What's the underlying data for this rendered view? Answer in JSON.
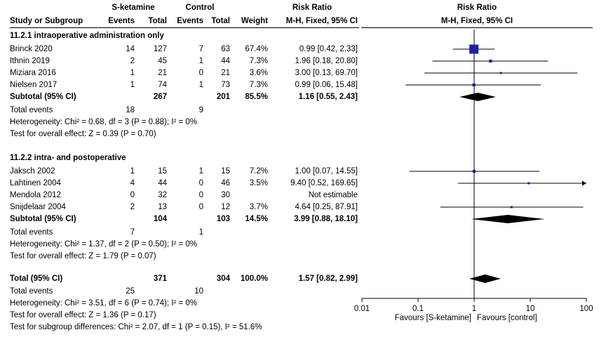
{
  "header": {
    "group1": "S-ketamine",
    "group2": "Control",
    "rr_title": "Risk Ratio",
    "plot_title": "Risk Ratio",
    "col_study": "Study or Subgroup",
    "col_e1": "Events",
    "col_t1": "Total",
    "col_e2": "Events",
    "col_t2": "Total",
    "col_weight": "Weight",
    "col_method": "M-H, Fixed, 95% CI",
    "plot_method": "M-H, Fixed, 95% CI"
  },
  "subgroups": [
    {
      "title": "11.2.1 intraoperative administration only",
      "studies": [
        {
          "name": "Brinck 2020",
          "e1": "14",
          "t1": "127",
          "e2": "7",
          "t2": "63",
          "weight": "67.4%",
          "ci_text": "0.99 [0.42, 2.33]"
        },
        {
          "name": "Ithnin 2019",
          "e1": "2",
          "t1": "45",
          "e2": "1",
          "t2": "44",
          "weight": "7.3%",
          "ci_text": "1.96 [0.18, 20.80]"
        },
        {
          "name": "Miziara 2016",
          "e1": "1",
          "t1": "21",
          "e2": "0",
          "t2": "21",
          "weight": "3.6%",
          "ci_text": "3.00 [0.13, 69.70]"
        },
        {
          "name": "Nielsen 2017",
          "e1": "1",
          "t1": "74",
          "e2": "1",
          "t2": "73",
          "weight": "7.3%",
          "ci_text": "0.99 [0.06, 15.48]"
        }
      ],
      "subtotal": {
        "label": "Subtotal (95% CI)",
        "t1": "267",
        "t2": "201",
        "weight": "85.5%",
        "ci_text": "1.16 [0.55, 2.43]"
      },
      "total_events": {
        "label": "Total events",
        "e1": "18",
        "e2": "9"
      },
      "heterogeneity": "Heterogeneity: Chi² = 0.68, df = 3 (P = 0.88); I² = 0%",
      "overall": "Test for overall effect: Z = 0.39 (P = 0.70)"
    },
    {
      "title": "11.2.2 intra- and postoperative",
      "studies": [
        {
          "name": "Jaksch 2002",
          "e1": "1",
          "t1": "15",
          "e2": "1",
          "t2": "15",
          "weight": "7.2%",
          "ci_text": "1.00 [0.07, 14.55]"
        },
        {
          "name": "Lahtinen 2004",
          "e1": "4",
          "t1": "44",
          "e2": "0",
          "t2": "46",
          "weight": "3.5%",
          "ci_text": "9.40 [0.52, 169.65]"
        },
        {
          "name": "Mendola 2012",
          "e1": "0",
          "t1": "32",
          "e2": "0",
          "t2": "30",
          "weight": "",
          "ci_text": "Not estimable"
        },
        {
          "name": "Snijdelaar 2004",
          "e1": "2",
          "t1": "13",
          "e2": "0",
          "t2": "12",
          "weight": "3.7%",
          "ci_text": "4.64 [0.25, 87.91]"
        }
      ],
      "subtotal": {
        "label": "Subtotal (95% CI)",
        "t1": "104",
        "t2": "103",
        "weight": "14.5%",
        "ci_text": "3.99 [0.88, 18.10]"
      },
      "total_events": {
        "label": "Total events",
        "e1": "7",
        "e2": "1"
      },
      "heterogeneity": "Heterogeneity: Chi² = 1.37, df = 2 (P = 0.50); I² = 0%",
      "overall": "Test for overall effect: Z = 1.79 (P = 0.07)"
    }
  ],
  "total": {
    "label": "Total (95% CI)",
    "t1": "371",
    "t2": "304",
    "weight": "100.0%",
    "ci_text": "1.57 [0.82, 2.99]",
    "events_label": "Total events",
    "e1": "25",
    "e2": "10",
    "heterogeneity": "Heterogeneity: Chi² = 3.51, df = 6 (P = 0.74); I² = 0%",
    "overall": "Test for overall effect: Z = 1.36 (P = 0.17)",
    "subgroup_diff": "Test for subgroup differences: Chi² = 2.07, df = 1 (P = 0.15), I² = 51.6%"
  },
  "axis": {
    "ticks": [
      "0.01",
      "0.1",
      "1",
      "10",
      "100"
    ],
    "favours_left": "Favours [S-ketamine]",
    "favours_right": "Favours [control]"
  },
  "chart_data": {
    "type": "forest",
    "scale": "log",
    "xlim": [
      0.01,
      100
    ],
    "reference_line": 1,
    "studies": [
      {
        "name": "Brinck 2020",
        "rr": 0.99,
        "lo": 0.42,
        "hi": 2.33,
        "weight": 67.4
      },
      {
        "name": "Ithnin 2019",
        "rr": 1.96,
        "lo": 0.18,
        "hi": 20.8,
        "weight": 7.3
      },
      {
        "name": "Miziara 2016",
        "rr": 3.0,
        "lo": 0.13,
        "hi": 69.7,
        "weight": 3.6
      },
      {
        "name": "Nielsen 2017",
        "rr": 0.99,
        "lo": 0.06,
        "hi": 15.48,
        "weight": 7.3
      },
      {
        "name": "Jaksch 2002",
        "rr": 1.0,
        "lo": 0.07,
        "hi": 14.55,
        "weight": 7.2
      },
      {
        "name": "Lahtinen 2004",
        "rr": 9.4,
        "lo": 0.52,
        "hi": 169.65,
        "weight": 3.5
      },
      {
        "name": "Snijdelaar 2004",
        "rr": 4.64,
        "lo": 0.25,
        "hi": 87.91,
        "weight": 3.7
      }
    ],
    "pooled": [
      {
        "name": "Subtotal 11.2.1",
        "rr": 1.16,
        "lo": 0.55,
        "hi": 2.43
      },
      {
        "name": "Subtotal 11.2.2",
        "rr": 3.99,
        "lo": 0.88,
        "hi": 18.1
      },
      {
        "name": "Total",
        "rr": 1.57,
        "lo": 0.82,
        "hi": 2.99
      }
    ],
    "colors": {
      "square": "#1f1fa3",
      "diamond": "#000000",
      "line": "#000000"
    }
  }
}
